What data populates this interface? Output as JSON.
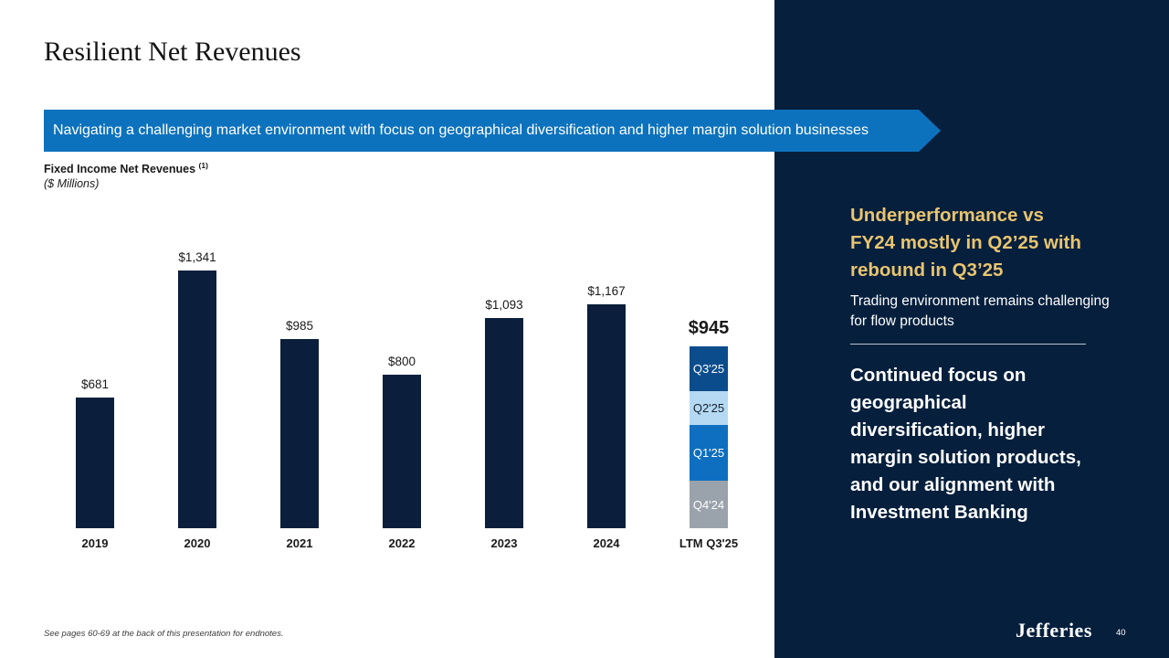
{
  "slide": {
    "title": "Resilient Net Revenues",
    "banner_text": "Navigating a challenging market environment with focus on geographical diversification and higher margin solution businesses",
    "footnote": "See pages 60-69 at the back of this presentation for endnotes.",
    "logo_text": "Jefferies",
    "page_number": "40"
  },
  "chart_header": {
    "title": "Fixed Income Net Revenues",
    "footnote_ref": "(1)",
    "units": "($ Millions)"
  },
  "chart_data": {
    "type": "bar",
    "title": "Fixed Income Net Revenues (1)",
    "ylabel": "$ Millions",
    "ylim": [
      0,
      1400
    ],
    "grid": false,
    "categories": [
      "2019",
      "2020",
      "2021",
      "2022",
      "2023",
      "2024",
      "LTM Q3'25"
    ],
    "values": [
      681,
      1341,
      985,
      800,
      1093,
      1167,
      945
    ],
    "value_labels": [
      "$681",
      "$1,341",
      "$985",
      "$800",
      "$1,093",
      "$1,167",
      "$945"
    ],
    "bar_color": "#0b1f3c",
    "stacked_final": {
      "category": "LTM Q3'25",
      "total": 945,
      "total_label": "$945",
      "segments_top_to_bottom": [
        {
          "label": "Q3'25",
          "value": 235,
          "color": "#0b4d8c",
          "text_color": "#ffffff"
        },
        {
          "label": "Q2'25",
          "value": 175,
          "color": "#b5d9f3",
          "text_color": "#15202e"
        },
        {
          "label": "Q1'25",
          "value": 290,
          "color": "#0e6fc0",
          "text_color": "#ffffff"
        },
        {
          "label": "Q4'24",
          "value": 245,
          "color": "#9aa3ab",
          "text_color": "#ffffff"
        }
      ]
    }
  },
  "sidebar": {
    "heading_lines": [
      "Underperformance vs",
      "FY24 mostly in Q2’25 with",
      "rebound in Q3’25"
    ],
    "subtext_lines": [
      "Trading environment remains challenging",
      "for flow products"
    ],
    "body_lines": [
      "Continued focus on",
      "geographical",
      "diversification, higher",
      "margin solution products,",
      "and our alignment with",
      "Investment Banking"
    ]
  },
  "colors": {
    "sidebar_navy": "#051f3d",
    "banner_blue": "#0d72bd",
    "accent_gold": "#e9c46f",
    "bar_navy": "#0b1f3c"
  }
}
